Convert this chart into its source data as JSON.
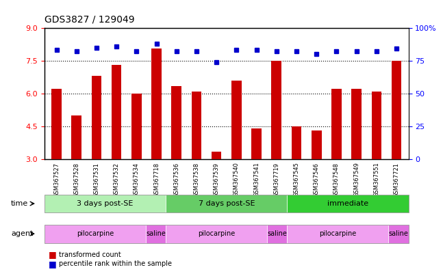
{
  "title": "GDS3827 / 129049",
  "samples": [
    "GSM367527",
    "GSM367528",
    "GSM367531",
    "GSM367532",
    "GSM367534",
    "GSM367718",
    "GSM367536",
    "GSM367538",
    "GSM367539",
    "GSM367540",
    "GSM367541",
    "GSM367719",
    "GSM367545",
    "GSM367546",
    "GSM367548",
    "GSM367549",
    "GSM367551",
    "GSM367721"
  ],
  "bar_values": [
    6.2,
    5.0,
    6.8,
    7.3,
    6.0,
    8.05,
    6.35,
    6.1,
    3.35,
    6.6,
    4.4,
    7.5,
    4.5,
    4.3,
    6.2,
    6.2,
    6.1,
    7.5
  ],
  "dot_values": [
    83,
    82,
    85,
    86,
    82,
    88,
    82,
    82,
    74,
    83,
    83,
    82,
    82,
    80,
    82,
    82,
    82,
    84
  ],
  "bar_color": "#cc0000",
  "dot_color": "#0000cc",
  "ylim_left": [
    3,
    9
  ],
  "ylim_right": [
    0,
    100
  ],
  "yticks_left": [
    3,
    4.5,
    6,
    7.5,
    9
  ],
  "yticks_right": [
    0,
    25,
    50,
    75,
    100
  ],
  "ytick_labels_right": [
    "0",
    "25",
    "50",
    "75",
    "100%"
  ],
  "grid_lines": [
    4.5,
    6.0,
    7.5
  ],
  "time_groups": [
    {
      "label": "3 days post-SE",
      "start": 0,
      "end": 5,
      "color": "#b3f0b3"
    },
    {
      "label": "7 days post-SE",
      "start": 6,
      "end": 11,
      "color": "#66cc66"
    },
    {
      "label": "immediate",
      "start": 12,
      "end": 17,
      "color": "#33cc33"
    }
  ],
  "agent_groups": [
    {
      "label": "pilocarpine",
      "start": 0,
      "end": 4,
      "color": "#f0a0f0"
    },
    {
      "label": "saline",
      "start": 5,
      "end": 5,
      "color": "#e070e0"
    },
    {
      "label": "pilocarpine",
      "start": 6,
      "end": 10,
      "color": "#f0a0f0"
    },
    {
      "label": "saline",
      "start": 11,
      "end": 11,
      "color": "#e070e0"
    },
    {
      "label": "pilocarpine",
      "start": 12,
      "end": 16,
      "color": "#f0a0f0"
    },
    {
      "label": "saline",
      "start": 17,
      "end": 17,
      "color": "#e070e0"
    }
  ],
  "legend_bar_label": "transformed count",
  "legend_dot_label": "percentile rank within the sample",
  "time_label": "time",
  "agent_label": "agent",
  "bar_width": 0.5
}
